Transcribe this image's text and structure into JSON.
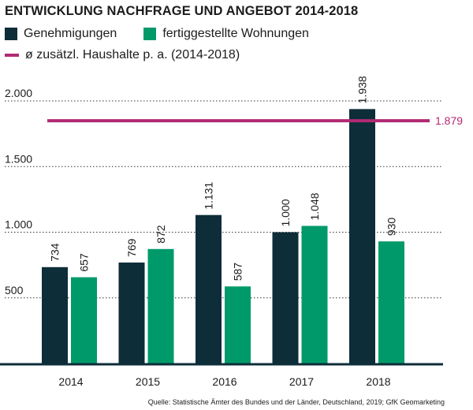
{
  "chart_data": {
    "type": "bar",
    "title": "ENTWICKLUNG NACHFRAGE UND ANGEBOT 2014-2018",
    "categories": [
      "2014",
      "2015",
      "2016",
      "2017",
      "2018"
    ],
    "series": [
      {
        "name": "Genehmigungen",
        "color": "#0d2d38",
        "values": [
          734,
          769,
          1131,
          1000,
          1938
        ],
        "labels": [
          "734",
          "769",
          "1.131",
          "1.000",
          "1.938"
        ]
      },
      {
        "name": "fertiggestellte Wohnungen",
        "color": "#009a6a",
        "values": [
          657,
          872,
          587,
          1048,
          930
        ],
        "labels": [
          "657",
          "872",
          "587",
          "1.048",
          "930"
        ]
      }
    ],
    "reference_line": {
      "name": "ø zusätzl. Haushalte p. a. (2014-2018)",
      "value": 1879,
      "label": "1.879",
      "color": "#b12a73"
    },
    "yticks": [
      {
        "value": 500,
        "label": "500"
      },
      {
        "value": 1000,
        "label": "1.000"
      },
      {
        "value": 1500,
        "label": "1.500"
      },
      {
        "value": 2000,
        "label": "2.000"
      }
    ],
    "ylim": [
      0,
      2000
    ],
    "xlabel": "",
    "ylabel": "",
    "grid": "dotted horizontal",
    "source": "Quelle: Statistische Ämter des Bundes und der Länder, Deutschland, 2019; GfK Geomarketing"
  }
}
